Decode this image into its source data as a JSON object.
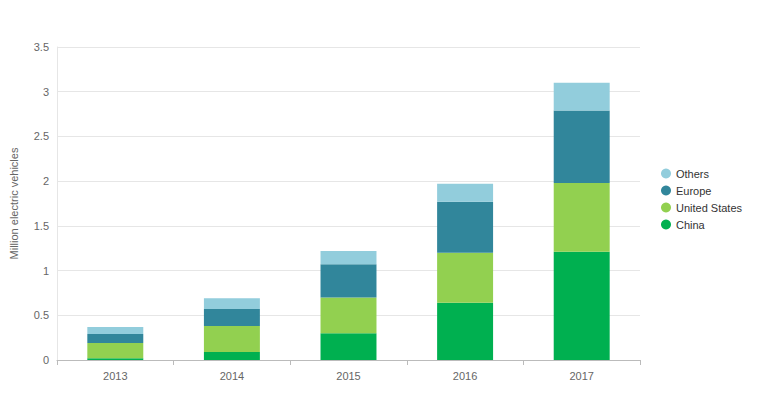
{
  "chart_data": {
    "type": "bar",
    "stacked": true,
    "grid": true,
    "legend": "right",
    "y_label": "Million electric vehicles",
    "categories": [
      "2013",
      "2014",
      "2015",
      "2016",
      "2017"
    ],
    "series": [
      {
        "name": "China",
        "color": "#00b050",
        "values": [
          0.02,
          0.09,
          0.3,
          0.64,
          1.21
        ]
      },
      {
        "name": "United States",
        "color": "#92d050",
        "values": [
          0.17,
          0.29,
          0.4,
          0.56,
          0.77
        ]
      },
      {
        "name": "Europe",
        "color": "#31869b",
        "values": [
          0.1,
          0.19,
          0.37,
          0.57,
          0.81
        ]
      },
      {
        "name": "Others",
        "color": "#92cddc",
        "values": [
          0.08,
          0.12,
          0.15,
          0.2,
          0.31
        ]
      }
    ],
    "ylim": [
      0,
      3.5
    ],
    "yticks": [
      0,
      0.5,
      1,
      1.5,
      2,
      2.5,
      3,
      3.5
    ]
  }
}
